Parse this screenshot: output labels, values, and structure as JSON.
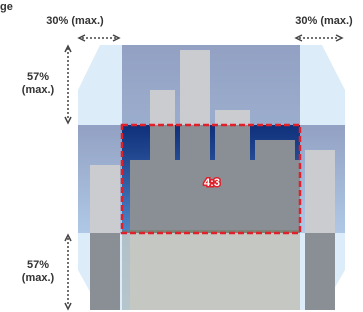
{
  "header": {
    "title": "ge"
  },
  "labels": {
    "width_left": "30% (max.)",
    "width_right": "30% (max.)",
    "height_top": [
      "57%",
      "(max.)"
    ],
    "height_bottom": [
      "57%",
      "(max.)"
    ]
  },
  "center_label": "4:3"
}
